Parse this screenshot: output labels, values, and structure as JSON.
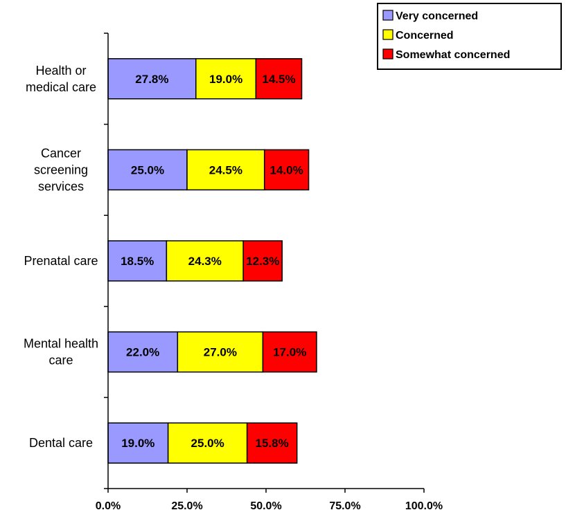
{
  "chart_data": {
    "type": "bar",
    "orientation": "horizontal",
    "stacked": true,
    "categories": [
      [
        "Health or",
        "medical care"
      ],
      [
        "Cancer",
        "screening",
        "services"
      ],
      [
        "Prenatal care"
      ],
      [
        "Mental health",
        "care"
      ],
      [
        "Dental care"
      ]
    ],
    "series": [
      {
        "name": "Very concerned",
        "color": "#9999FF",
        "values": [
          27.8,
          25.0,
          18.5,
          22.0,
          19.0
        ]
      },
      {
        "name": "Concerned",
        "color": "#FFFF00",
        "values": [
          19.0,
          24.5,
          24.3,
          27.0,
          25.0
        ]
      },
      {
        "name": "Somewhat concerned",
        "color": "#FF0000",
        "values": [
          14.5,
          14.0,
          12.3,
          17.0,
          15.8
        ]
      }
    ],
    "xlim": [
      0,
      100
    ],
    "xticks": [
      0,
      25,
      50,
      75,
      100
    ],
    "xtick_labels": [
      "0.0%",
      "25.0%",
      "50.0%",
      "75.0%",
      "100.0%"
    ],
    "value_format": "0.0%",
    "legend_position": "top-right",
    "grid": false,
    "title": "",
    "xlabel": "",
    "ylabel": ""
  }
}
